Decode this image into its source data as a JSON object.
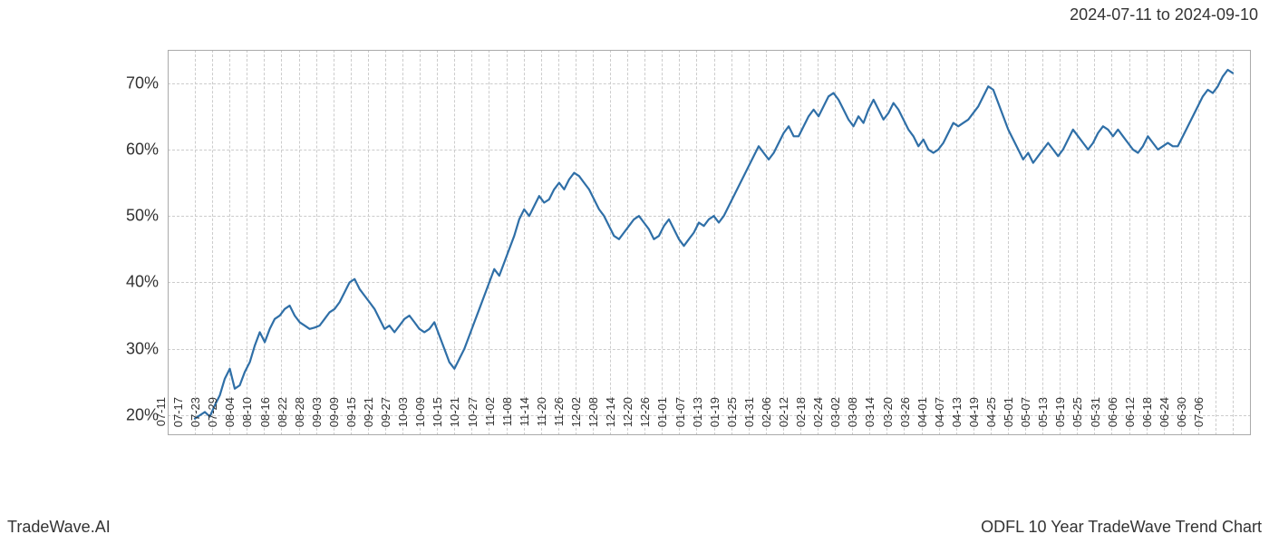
{
  "header": {
    "date_range": "2024-07-11 to 2024-09-10"
  },
  "footer": {
    "left": "TradeWave.AI",
    "right": "ODFL 10 Year TradeWave Trend Chart"
  },
  "chart": {
    "type": "line",
    "background_color": "#ffffff",
    "grid_color": "#cccccc",
    "axis_border_color": "#aaaaaa",
    "line_color": "#2f6fa7",
    "line_width": 2.2,
    "highlight_band": {
      "color": "#dcedd8",
      "start_label": "07-11",
      "end_label": "09-10"
    },
    "y_axis": {
      "min": 17,
      "max": 75,
      "ticks": [
        20,
        30,
        40,
        50,
        60,
        70
      ],
      "tick_suffix": "%",
      "label_fontsize": 18,
      "label_color": "#333333"
    },
    "x_axis": {
      "labels": [
        "07-11",
        "07-17",
        "07-23",
        "07-29",
        "08-04",
        "08-10",
        "08-16",
        "08-22",
        "08-28",
        "09-03",
        "09-09",
        "09-15",
        "09-21",
        "09-27",
        "10-03",
        "10-09",
        "10-15",
        "10-21",
        "10-27",
        "11-02",
        "11-08",
        "11-14",
        "11-20",
        "11-26",
        "12-02",
        "12-08",
        "12-14",
        "12-20",
        "12-26",
        "01-01",
        "01-07",
        "01-13",
        "01-19",
        "01-25",
        "01-31",
        "02-06",
        "02-12",
        "02-18",
        "02-24",
        "03-02",
        "03-08",
        "03-14",
        "03-20",
        "03-26",
        "04-01",
        "04-07",
        "04-13",
        "04-19",
        "04-25",
        "05-01",
        "05-07",
        "05-13",
        "05-19",
        "05-25",
        "05-31",
        "06-06",
        "06-12",
        "06-18",
        "06-24",
        "06-30",
        "07-06"
      ],
      "label_fontsize": 13,
      "label_color": "#333333",
      "rotation": -90
    },
    "series": {
      "values": [
        19.5,
        20.0,
        20.5,
        19.8,
        21.5,
        23.0,
        25.5,
        27.0,
        24.0,
        24.5,
        26.5,
        28.0,
        30.5,
        32.5,
        31.0,
        33.0,
        34.5,
        35.0,
        36.0,
        36.5,
        35.0,
        34.0,
        33.5,
        33.0,
        33.2,
        33.5,
        34.5,
        35.5,
        36.0,
        37.0,
        38.5,
        40.0,
        40.5,
        39.0,
        38.0,
        37.0,
        36.0,
        34.5,
        33.0,
        33.5,
        32.5,
        33.5,
        34.5,
        35.0,
        34.0,
        33.0,
        32.5,
        33.0,
        34.0,
        32.0,
        30.0,
        28.0,
        27.0,
        28.5,
        30.0,
        32.0,
        34.0,
        36.0,
        38.0,
        40.0,
        42.0,
        41.0,
        43.0,
        45.0,
        47.0,
        49.5,
        51.0,
        50.0,
        51.5,
        53.0,
        52.0,
        52.5,
        54.0,
        55.0,
        54.0,
        55.5,
        56.5,
        56.0,
        55.0,
        54.0,
        52.5,
        51.0,
        50.0,
        48.5,
        47.0,
        46.5,
        47.5,
        48.5,
        49.5,
        50.0,
        49.0,
        48.0,
        46.5,
        47.0,
        48.5,
        49.5,
        48.0,
        46.5,
        45.5,
        46.5,
        47.5,
        49.0,
        48.5,
        49.5,
        50.0,
        49.0,
        50.0,
        51.5,
        53.0,
        54.5,
        56.0,
        57.5,
        59.0,
        60.5,
        59.5,
        58.5,
        59.5,
        61.0,
        62.5,
        63.5,
        62.0,
        62.0,
        63.5,
        65.0,
        66.0,
        65.0,
        66.5,
        68.0,
        68.5,
        67.5,
        66.0,
        64.5,
        63.5,
        65.0,
        64.0,
        66.0,
        67.5,
        66.0,
        64.5,
        65.5,
        67.0,
        66.0,
        64.5,
        63.0,
        62.0,
        60.5,
        61.5,
        60.0,
        59.5,
        60.0,
        61.0,
        62.5,
        64.0,
        63.5,
        64.0,
        64.5,
        65.5,
        66.5,
        68.0,
        69.5,
        69.0,
        67.0,
        65.0,
        63.0,
        61.5,
        60.0,
        58.5,
        59.5,
        58.0,
        59.0,
        60.0,
        61.0,
        60.0,
        59.0,
        60.0,
        61.5,
        63.0,
        62.0,
        61.0,
        60.0,
        61.0,
        62.5,
        63.5,
        63.0,
        62.0,
        63.0,
        62.0,
        61.0,
        60.0,
        59.5,
        60.5,
        62.0,
        61.0,
        60.0,
        60.5,
        61.0,
        60.5,
        60.5,
        62.0,
        63.5,
        65.0,
        66.5,
        68.0,
        69.0,
        68.5,
        69.5,
        71.0,
        72.0,
        71.5
      ]
    }
  }
}
